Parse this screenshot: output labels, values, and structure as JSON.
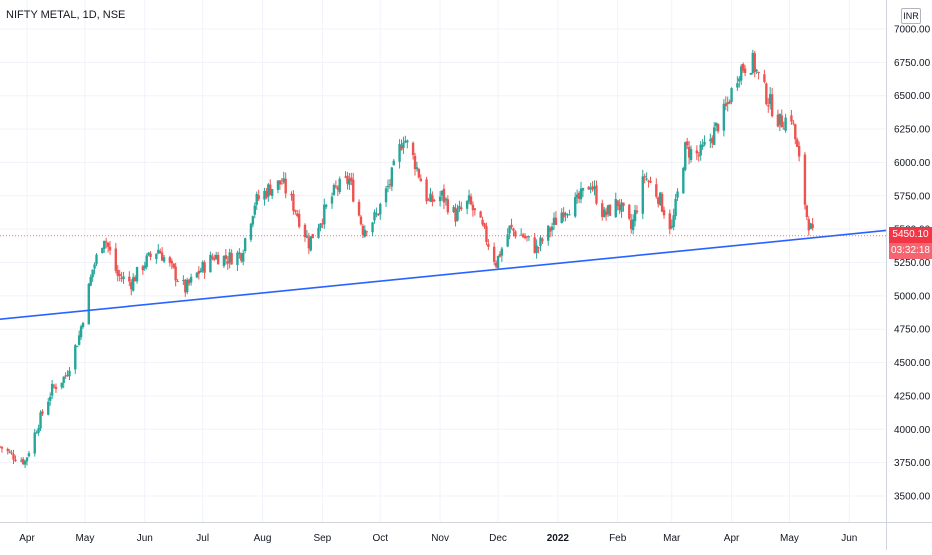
{
  "header": {
    "symbol_title": "NIFTY METAL, 1D, NSE",
    "currency": "INR"
  },
  "last_price": {
    "value": "5450.10",
    "countdown": "03:32:18",
    "color": "#f23645"
  },
  "colors": {
    "up": "#26a69a",
    "down": "#ef5350",
    "trendline": "#2962ff",
    "grid": "#f0f3fa",
    "axis_text": "#787b86"
  },
  "chart_data": {
    "type": "candlestick",
    "title": "NIFTY METAL, 1D, NSE",
    "ylabel": "",
    "ylim": [
      3300,
      7100
    ],
    "y_ticks": [
      3500,
      3750,
      4000,
      4250,
      4500,
      4750,
      5000,
      5250,
      5500,
      5750,
      6000,
      6250,
      6500,
      6750,
      7000
    ],
    "y_tick_labels": [
      "3500.00",
      "3750.00",
      "4000.00",
      "4250.00",
      "4500.00",
      "4750.00",
      "5000.00",
      "5250.00",
      "5500.00",
      "5750.00",
      "6000.00",
      "6250.00",
      "6500.00",
      "6750.00",
      "7000.00"
    ],
    "x_tick_labels": [
      "Apr",
      "May",
      "Jun",
      "Jul",
      "Aug",
      "Sep",
      "Oct",
      "Nov",
      "Dec",
      "2022",
      "Feb",
      "Mar",
      "Apr",
      "May",
      "Jun"
    ],
    "x_tick_dates": [
      "2021-04-01",
      "2021-05-01",
      "2021-06-01",
      "2021-07-01",
      "2021-08-01",
      "2021-09-01",
      "2021-10-01",
      "2021-11-01",
      "2021-12-01",
      "2022-01-01",
      "2022-02-01",
      "2022-03-01",
      "2022-04-01",
      "2022-05-01",
      "2022-06-01"
    ],
    "xlim": [
      "2021-03-18",
      "2022-06-20"
    ],
    "close_path": [
      [
        "2021-03-18",
        3870
      ],
      [
        "2021-03-25",
        3800
      ],
      [
        "2021-03-31",
        3760
      ],
      [
        "2021-04-07",
        4050
      ],
      [
        "2021-04-14",
        4300
      ],
      [
        "2021-04-21",
        4400
      ],
      [
        "2021-04-28",
        4700
      ],
      [
        "2021-05-05",
        5200
      ],
      [
        "2021-05-11",
        5450
      ],
      [
        "2021-05-18",
        5150
      ],
      [
        "2021-05-25",
        5100
      ],
      [
        "2021-06-01",
        5250
      ],
      [
        "2021-06-08",
        5350
      ],
      [
        "2021-06-15",
        5200
      ],
      [
        "2021-06-22",
        5050
      ],
      [
        "2021-06-29",
        5180
      ],
      [
        "2021-07-07",
        5300
      ],
      [
        "2021-07-14",
        5280
      ],
      [
        "2021-07-21",
        5320
      ],
      [
        "2021-07-28",
        5700
      ],
      [
        "2021-08-04",
        5800
      ],
      [
        "2021-08-11",
        5850
      ],
      [
        "2021-08-18",
        5650
      ],
      [
        "2021-08-25",
        5400
      ],
      [
        "2021-09-01",
        5600
      ],
      [
        "2021-09-08",
        5800
      ],
      [
        "2021-09-15",
        5870
      ],
      [
        "2021-09-22",
        5500
      ],
      [
        "2021-09-29",
        5600
      ],
      [
        "2021-10-06",
        5850
      ],
      [
        "2021-10-13",
        6200
      ],
      [
        "2021-10-19",
        6000
      ],
      [
        "2021-10-26",
        5700
      ],
      [
        "2021-11-02",
        5750
      ],
      [
        "2021-11-09",
        5600
      ],
      [
        "2021-11-16",
        5700
      ],
      [
        "2021-11-23",
        5500
      ],
      [
        "2021-11-30",
        5250
      ],
      [
        "2021-12-07",
        5500
      ],
      [
        "2021-12-14",
        5450
      ],
      [
        "2021-12-21",
        5350
      ],
      [
        "2021-12-28",
        5500
      ],
      [
        "2022-01-04",
        5650
      ],
      [
        "2022-01-11",
        5700
      ],
      [
        "2022-01-18",
        5850
      ],
      [
        "2022-01-25",
        5600
      ],
      [
        "2022-02-01",
        5700
      ],
      [
        "2022-02-08",
        5500
      ],
      [
        "2022-02-15",
        5900
      ],
      [
        "2022-02-22",
        5750
      ],
      [
        "2022-03-01",
        5500
      ],
      [
        "2022-03-08",
        6100
      ],
      [
        "2022-03-15",
        6050
      ],
      [
        "2022-03-22",
        6200
      ],
      [
        "2022-03-29",
        6400
      ],
      [
        "2022-04-05",
        6700
      ],
      [
        "2022-04-12",
        6750
      ],
      [
        "2022-04-19",
        6500
      ],
      [
        "2022-04-26",
        6300
      ],
      [
        "2022-05-02",
        6350
      ],
      [
        "2022-05-06",
        6000
      ],
      [
        "2022-05-10",
        5600
      ],
      [
        "2022-05-13",
        5450
      ]
    ],
    "trendline": {
      "start": [
        "2021-03-18",
        4825
      ],
      "end": [
        "2022-06-20",
        5490
      ]
    },
    "last_price": 5450.1,
    "grid": true,
    "legend": "none"
  }
}
